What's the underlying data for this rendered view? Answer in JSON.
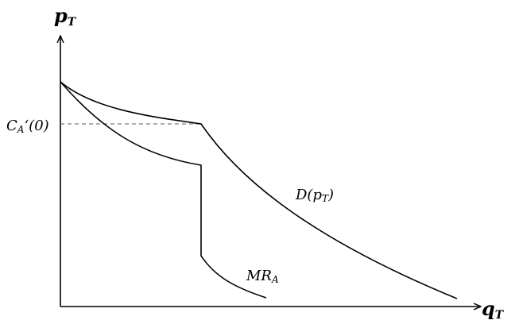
{
  "diagram": {
    "axes": {
      "y_label": {
        "main": "p",
        "sub": "T"
      },
      "x_label": {
        "main": "q",
        "sub": "T"
      }
    },
    "level_label": {
      "main": "C",
      "sub": "A",
      "suffix": "‘(0)"
    },
    "curves": {
      "demand": {
        "main": "D(p",
        "sub": "T",
        "suffix": ")"
      },
      "marginal_revenue": {
        "main": "MR",
        "sub": "A"
      }
    }
  }
}
